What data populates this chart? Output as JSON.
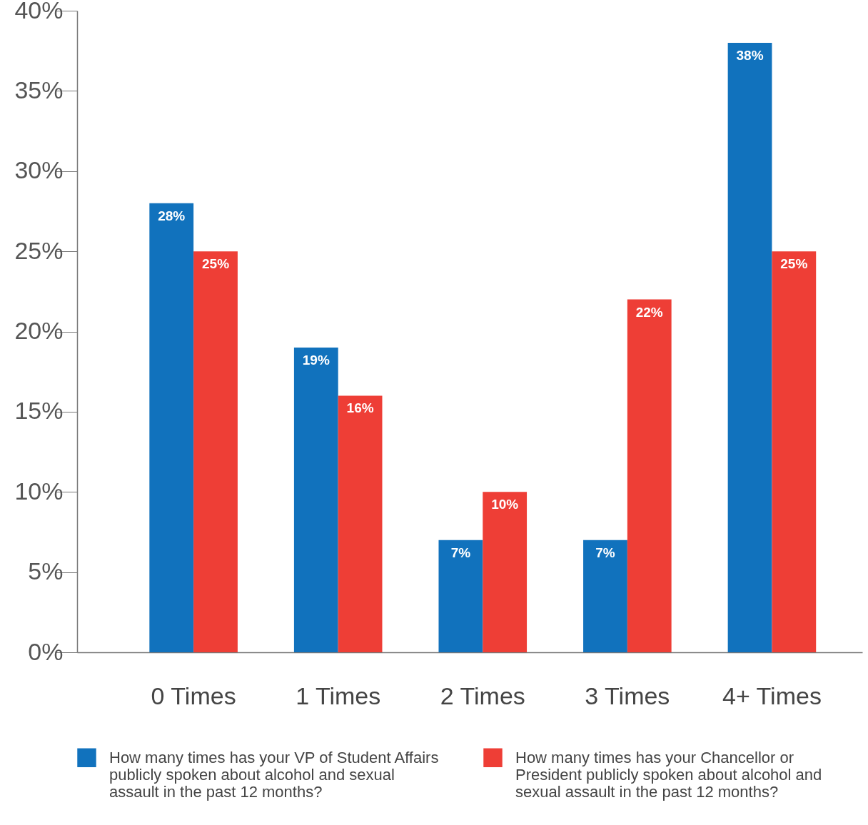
{
  "chart_data": {
    "type": "bar",
    "categories": [
      "0 Times",
      "1 Times",
      "2 Times",
      "3 Times",
      "4+ Times"
    ],
    "series": [
      {
        "name": "How many times has your VP of Student Affairs publicly spoken about alcohol and sexual assault in the past 12 months?",
        "color": "#1172bd",
        "values": [
          28,
          19,
          7,
          7,
          38
        ],
        "value_labels": [
          "28%",
          "19%",
          "7%",
          "7%",
          "38%"
        ]
      },
      {
        "name": "How many times has your Chancellor or President publicly spoken about alcohol and sexual assault in the past 12 months?",
        "color": "#ee3e36",
        "values": [
          25,
          16,
          10,
          22,
          25
        ],
        "value_labels": [
          "25%",
          "16%",
          "10%",
          "22%",
          "25%"
        ]
      }
    ],
    "ylim": [
      0,
      40
    ],
    "yticks": [
      {
        "value": 0,
        "label": "0%"
      },
      {
        "value": 5,
        "label": "5%"
      },
      {
        "value": 10,
        "label": "10%"
      },
      {
        "value": 15,
        "label": "15%"
      },
      {
        "value": 20,
        "label": "20%"
      },
      {
        "value": 25,
        "label": "25%"
      },
      {
        "value": 30,
        "label": "30%"
      },
      {
        "value": 35,
        "label": "35%"
      },
      {
        "value": 40,
        "label": "40%"
      }
    ],
    "grid": false,
    "legend": "bottom"
  }
}
